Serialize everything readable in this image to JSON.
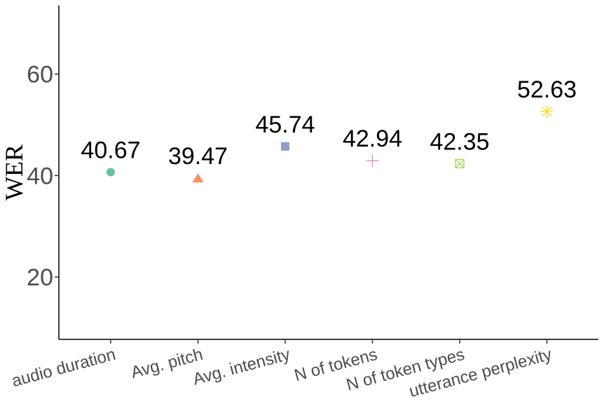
{
  "chart_data": {
    "type": "scatter",
    "title": "",
    "xlabel": "",
    "ylabel": "WER",
    "ylim": [
      7.7,
      73.5
    ],
    "yticks": [
      20,
      40,
      60
    ],
    "grid": false,
    "categories": [
      "audio duration",
      "Avg. pitch",
      "Avg. intensity",
      "N of tokens",
      "N of token types",
      "utterance perplexity"
    ],
    "values": [
      40.67,
      39.47,
      45.74,
      42.94,
      42.35,
      52.63
    ],
    "labels": [
      "40.67",
      "39.47",
      "45.74",
      "42.94",
      "42.35",
      "52.63"
    ],
    "markers": [
      "circle",
      "triangle",
      "square",
      "plus",
      "square-cross",
      "asterisk"
    ],
    "colors": [
      "#66c2a5",
      "#fc8d62",
      "#8da0cb",
      "#e78ac3",
      "#a6d854",
      "#ffd92f"
    ]
  }
}
